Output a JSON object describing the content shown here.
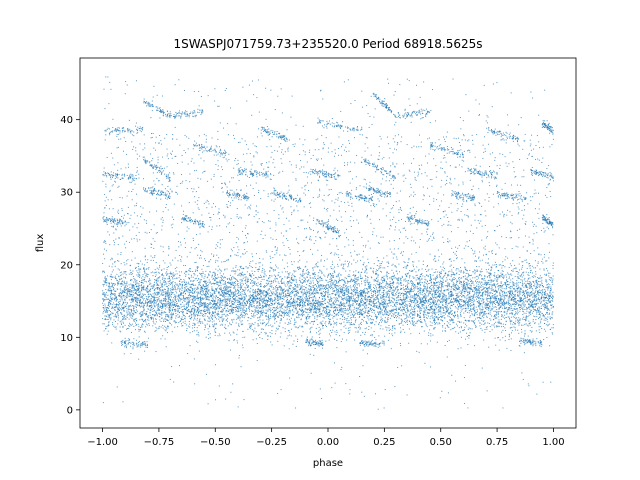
{
  "chart_data": {
    "type": "scatter",
    "title": "1SWASPJ071759.73+235520.0 Period 68918.5625s",
    "xlabel": "phase",
    "ylabel": "flux",
    "xlim": [
      -1.1,
      1.1
    ],
    "ylim": [
      -2.5,
      48.5
    ],
    "x_ticks": [
      -1.0,
      -0.75,
      -0.5,
      -0.25,
      0.0,
      0.25,
      0.5,
      0.75,
      1.0
    ],
    "x_tick_labels": [
      "−1.00",
      "−0.75",
      "−0.50",
      "−0.25",
      "0.00",
      "0.25",
      "0.50",
      "0.75",
      "1.00"
    ],
    "y_ticks": [
      0,
      10,
      20,
      30,
      40
    ],
    "y_tick_labels": [
      "0",
      "10",
      "20",
      "30",
      "40"
    ],
    "grid": false,
    "marker_color": "#1f77b4",
    "series": [
      {
        "description": "dense band",
        "x_range": [
          -1.0,
          1.0
        ],
        "y_center": 15.3,
        "y_spread": 2.2,
        "approx_points": 9000
      }
    ],
    "features": [
      {
        "x": [
          -0.99,
          -0.82
        ],
        "y": [
          38.5,
          38.7
        ]
      },
      {
        "x": [
          -0.82,
          -0.7
        ],
        "y": [
          42.5,
          40.5
        ]
      },
      {
        "x": [
          -0.7,
          -0.55
        ],
        "y": [
          40.6,
          41.0
        ]
      },
      {
        "x": [
          -0.6,
          -0.45
        ],
        "y": [
          36.5,
          35.2
        ]
      },
      {
        "x": [
          -0.3,
          -0.18
        ],
        "y": [
          38.8,
          37.3
        ]
      },
      {
        "x": [
          -0.05,
          0.15
        ],
        "y": [
          39.8,
          38.5
        ]
      },
      {
        "x": [
          0.2,
          0.3
        ],
        "y": [
          43.5,
          40.5
        ]
      },
      {
        "x": [
          0.3,
          0.45
        ],
        "y": [
          40.5,
          41.0
        ]
      },
      {
        "x": [
          0.45,
          0.6
        ],
        "y": [
          36.5,
          35.0
        ]
      },
      {
        "x": [
          0.7,
          0.85
        ],
        "y": [
          38.8,
          37.2
        ]
      },
      {
        "x": [
          0.95,
          1.0
        ],
        "y": [
          39.5,
          38.5
        ]
      },
      {
        "x": [
          -1.0,
          -0.85
        ],
        "y": [
          32.5,
          32.0
        ]
      },
      {
        "x": [
          -0.82,
          -0.7
        ],
        "y": [
          34.5,
          32.0
        ]
      },
      {
        "x": [
          -0.4,
          -0.25
        ],
        "y": [
          33.0,
          32.3
        ]
      },
      {
        "x": [
          -0.08,
          0.05
        ],
        "y": [
          33.0,
          32.0
        ]
      },
      {
        "x": [
          0.15,
          0.3
        ],
        "y": [
          34.5,
          32.0
        ]
      },
      {
        "x": [
          0.62,
          0.75
        ],
        "y": [
          33.0,
          32.2
        ]
      },
      {
        "x": [
          0.9,
          1.0
        ],
        "y": [
          33.0,
          32.0
        ]
      },
      {
        "x": [
          -0.82,
          -0.7
        ],
        "y": [
          30.5,
          29.5
        ]
      },
      {
        "x": [
          -0.45,
          -0.35
        ],
        "y": [
          29.8,
          29.2
        ]
      },
      {
        "x": [
          -0.25,
          -0.12
        ],
        "y": [
          29.8,
          29.0
        ]
      },
      {
        "x": [
          0.08,
          0.2
        ],
        "y": [
          29.8,
          29.0
        ]
      },
      {
        "x": [
          0.18,
          0.28
        ],
        "y": [
          30.5,
          29.5
        ]
      },
      {
        "x": [
          0.55,
          0.65
        ],
        "y": [
          29.8,
          29.2
        ]
      },
      {
        "x": [
          0.75,
          0.88
        ],
        "y": [
          29.8,
          29.0
        ]
      },
      {
        "x": [
          -1.0,
          -0.9
        ],
        "y": [
          26.2,
          25.8
        ]
      },
      {
        "x": [
          -0.65,
          -0.55
        ],
        "y": [
          26.5,
          25.5
        ]
      },
      {
        "x": [
          -0.05,
          0.05
        ],
        "y": [
          26.0,
          24.5
        ]
      },
      {
        "x": [
          0.35,
          0.45
        ],
        "y": [
          26.5,
          25.5
        ]
      },
      {
        "x": [
          0.95,
          1.0
        ],
        "y": [
          26.5,
          25.5
        ]
      },
      {
        "x": [
          -0.92,
          -0.8
        ],
        "y": [
          9.2,
          9.0
        ]
      },
      {
        "x": [
          -0.1,
          -0.02
        ],
        "y": [
          9.5,
          9.0
        ]
      },
      {
        "x": [
          0.14,
          0.25
        ],
        "y": [
          9.3,
          9.0
        ]
      },
      {
        "x": [
          0.85,
          0.95
        ],
        "y": [
          9.5,
          9.0
        ]
      }
    ]
  }
}
